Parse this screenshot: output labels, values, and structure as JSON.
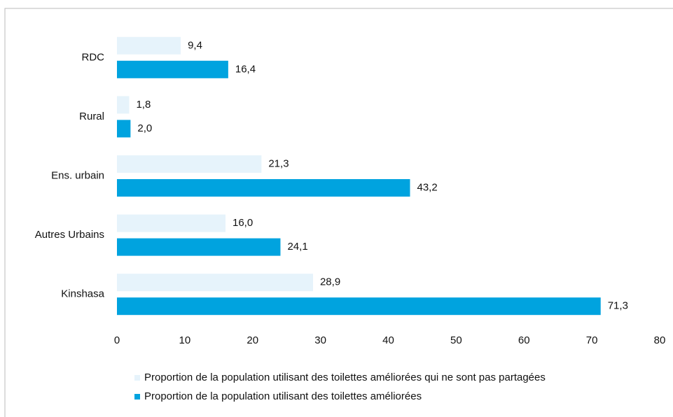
{
  "chart_data": {
    "type": "barh",
    "categories": [
      "RDC",
      "Rural",
      "Ens. urbain",
      "Autres Urbains",
      "Kinshasa"
    ],
    "series": [
      {
        "name": "Proportion de la population utilisant des toilettes améliorées qui ne sont pas partagées",
        "color": "#e6f3fb",
        "values": [
          9.4,
          1.8,
          21.3,
          16.0,
          28.9
        ],
        "value_labels": [
          "9,4",
          "1,8",
          "21,3",
          "16,0",
          "28,9"
        ]
      },
      {
        "name": "Proportion de la population utilisant des toilettes améliorées",
        "color": "#00a3df",
        "values": [
          16.4,
          2.0,
          43.2,
          24.1,
          71.3
        ],
        "value_labels": [
          "16,4",
          "2,0",
          "43,2",
          "24,1",
          "71,3"
        ]
      }
    ],
    "xlim": [
      0,
      80
    ],
    "xticks": [
      0,
      10,
      20,
      30,
      40,
      50,
      60,
      70,
      80
    ],
    "grid": false
  }
}
